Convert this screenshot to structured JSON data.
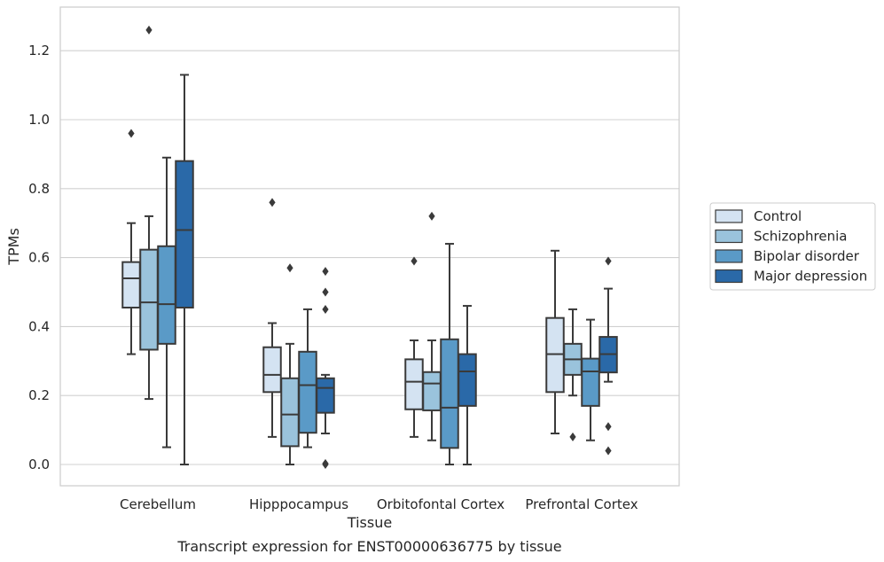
{
  "chart_data": {
    "type": "box",
    "title": "",
    "caption": "Transcript expression for ENST00000636775 by tissue",
    "xlabel": "Tissue",
    "ylabel": "TPMs",
    "ylim": [
      -0.06,
      1.33
    ],
    "yticks": [
      "0.0",
      "0.2",
      "0.4",
      "0.6",
      "0.8",
      "1.0",
      "1.2"
    ],
    "ytick_values": [
      0.0,
      0.2,
      0.4,
      0.6,
      0.8,
      1.0,
      1.2
    ],
    "grid": true,
    "legend_position": "right",
    "categories": [
      "Cerebellum",
      "Hipppocampus",
      "Orbitofontal Cortex",
      "Prefrontal Cortex"
    ],
    "series": [
      {
        "name": "Control",
        "color": "#d4e3f2",
        "boxes": [
          {
            "whislo": 0.32,
            "q1": 0.455,
            "med": 0.54,
            "q3": 0.587,
            "whishi": 0.7,
            "fliers": [
              0.96
            ]
          },
          {
            "whislo": 0.08,
            "q1": 0.21,
            "med": 0.26,
            "q3": 0.34,
            "whishi": 0.41,
            "fliers": [
              0.76
            ]
          },
          {
            "whislo": 0.08,
            "q1": 0.16,
            "med": 0.24,
            "q3": 0.305,
            "whishi": 0.36,
            "fliers": [
              0.59
            ]
          },
          {
            "whislo": 0.09,
            "q1": 0.21,
            "med": 0.32,
            "q3": 0.425,
            "whishi": 0.62,
            "fliers": []
          }
        ]
      },
      {
        "name": "Schizophrenia",
        "color": "#9ac3dc",
        "boxes": [
          {
            "whislo": 0.19,
            "q1": 0.333,
            "med": 0.47,
            "q3": 0.623,
            "whishi": 0.72,
            "fliers": [
              1.26
            ]
          },
          {
            "whislo": 0.0,
            "q1": 0.053,
            "med": 0.145,
            "q3": 0.25,
            "whishi": 0.35,
            "fliers": [
              0.57
            ]
          },
          {
            "whislo": 0.07,
            "q1": 0.157,
            "med": 0.235,
            "q3": 0.268,
            "whishi": 0.36,
            "fliers": [
              0.72
            ]
          },
          {
            "whislo": 0.2,
            "q1": 0.26,
            "med": 0.305,
            "q3": 0.35,
            "whishi": 0.45,
            "fliers": [
              0.08
            ]
          }
        ]
      },
      {
        "name": "Bipolar disorder",
        "color": "#5a9ac7",
        "boxes": [
          {
            "whislo": 0.05,
            "q1": 0.35,
            "med": 0.465,
            "q3": 0.633,
            "whishi": 0.89,
            "fliers": []
          },
          {
            "whislo": 0.05,
            "q1": 0.092,
            "med": 0.23,
            "q3": 0.327,
            "whishi": 0.45,
            "fliers": []
          },
          {
            "whislo": 0.0,
            "q1": 0.048,
            "med": 0.165,
            "q3": 0.363,
            "whishi": 0.64,
            "fliers": []
          },
          {
            "whislo": 0.07,
            "q1": 0.17,
            "med": 0.27,
            "q3": 0.307,
            "whishi": 0.42,
            "fliers": []
          }
        ]
      },
      {
        "name": "Major depression",
        "color": "#2a69a8",
        "boxes": [
          {
            "whislo": 0.0,
            "q1": 0.455,
            "med": 0.68,
            "q3": 0.88,
            "whishi": 1.13,
            "fliers": []
          },
          {
            "whislo": 0.09,
            "q1": 0.15,
            "med": 0.222,
            "q3": 0.25,
            "whishi": 0.26,
            "fliers": [
              0.56,
              0.5,
              0.45,
              0.0,
              0.003
            ]
          },
          {
            "whislo": 0.0,
            "q1": 0.17,
            "med": 0.27,
            "q3": 0.32,
            "whishi": 0.46,
            "fliers": []
          },
          {
            "whislo": 0.24,
            "q1": 0.267,
            "med": 0.32,
            "q3": 0.37,
            "whishi": 0.51,
            "fliers": [
              0.59,
              0.11,
              0.04
            ]
          }
        ]
      }
    ]
  }
}
